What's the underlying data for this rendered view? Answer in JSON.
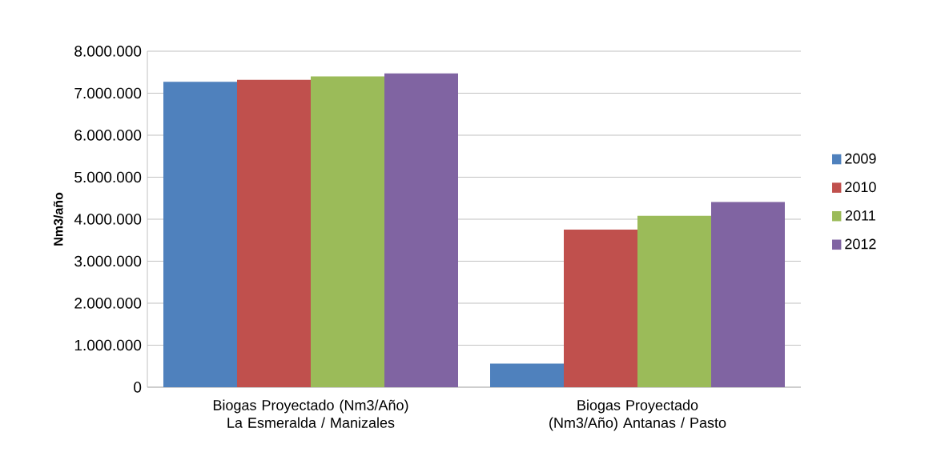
{
  "chart_data": {
    "type": "bar",
    "ylabel": "Nm3/año",
    "categories": [
      "Biogas Proyectado (Nm3/Año) La Esmeralda / Manizales",
      "Biogas Proyectado (Nm3/Año) Antanas / Pasto"
    ],
    "series": [
      {
        "name": "2009",
        "color": "#4f81bd",
        "values": [
          7270000,
          560000
        ]
      },
      {
        "name": "2010",
        "color": "#c0504d",
        "values": [
          7320000,
          3750000
        ]
      },
      {
        "name": "2011",
        "color": "#9bbb59",
        "values": [
          7400000,
          4080000
        ]
      },
      {
        "name": "2012",
        "color": "#8064a2",
        "values": [
          7470000,
          4410000
        ]
      }
    ],
    "ylim": [
      0,
      8000000
    ],
    "yticks": [
      0,
      {
        "value": 1000000,
        "label": "1.000.000"
      },
      {
        "value": 2000000,
        "label": "2.000.000"
      },
      {
        "value": 3000000,
        "label": "3.000.000"
      },
      {
        "value": 4000000,
        "label": "4.000.000"
      },
      {
        "value": 5000000,
        "label": "5.000.000"
      },
      {
        "value": 6000000,
        "label": "6.000.000"
      },
      {
        "value": 7000000,
        "label": "7.000.000"
      },
      {
        "value": 8000000,
        "label": "8.000.000"
      }
    ],
    "grid": "y",
    "legend": "right"
  }
}
